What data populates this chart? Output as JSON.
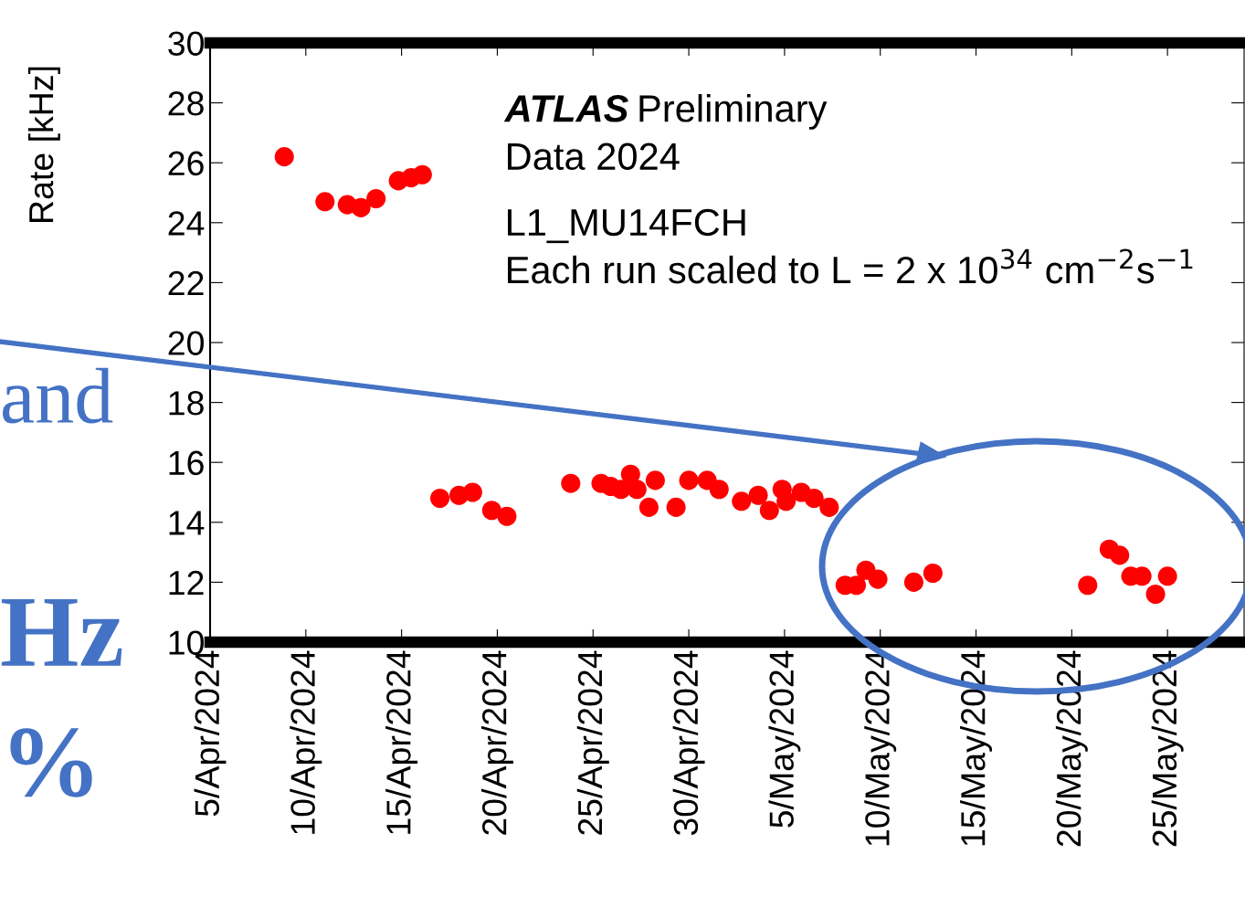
{
  "chart_data": {
    "type": "scatter",
    "ylabel": "Rate [kHz]",
    "marker": "circle",
    "annotations": [
      "ATLAS Preliminary",
      "Data 2024",
      "L1_MU14FCH",
      "Each run scaled to L = 2 x 10$^{34}$ cm$^{−2}$s$^{−1}$",
      "and",
      "Hz",
      "%"
    ],
    "xlim": [
      "2024-04-05",
      "2024-05-29"
    ],
    "xticks": [
      {
        "value": "2024-04-05",
        "label": "5/Apr/2024"
      },
      {
        "value": "2024-04-10",
        "label": "10/Apr/2024"
      },
      {
        "value": "2024-04-15",
        "label": "15/Apr/2024"
      },
      {
        "value": "2024-04-20",
        "label": "20/Apr/2024"
      },
      {
        "value": "2024-04-25",
        "label": "25/Apr/2024"
      },
      {
        "value": "2024-04-30",
        "label": "30/Apr/2024"
      },
      {
        "value": "2024-05-05",
        "label": "5/May/2024"
      },
      {
        "value": "2024-05-10",
        "label": "10/May/2024"
      },
      {
        "value": "2024-05-15",
        "label": "15/May/2024"
      },
      {
        "value": "2024-05-20",
        "label": "20/May/2024"
      },
      {
        "value": "2024-05-25",
        "label": "25/May/2024"
      }
    ],
    "ylim": [
      10,
      30
    ],
    "yticks": [
      10,
      12,
      14,
      16,
      18,
      20,
      22,
      24,
      26,
      28,
      30
    ],
    "series": [
      {
        "color": "#ff0000",
        "x": [
          "2024-04-08T21:00",
          "2024-04-11T00:00",
          "2024-04-12T04:00",
          "2024-04-12T21:00",
          "2024-04-13T16:00",
          "2024-04-14T20:00",
          "2024-04-15T12:00",
          "2024-04-16T02:00",
          "2024-04-17T00:00",
          "2024-04-18T00:00",
          "2024-04-18T17:00",
          "2024-04-19T17:00",
          "2024-04-20T12:00",
          "2024-04-23T20:00",
          "2024-04-25T10:00",
          "2024-04-25T22:00",
          "2024-04-26T11:00",
          "2024-04-26T23:00",
          "2024-04-27T07:00",
          "2024-04-27T22:00",
          "2024-04-28T06:00",
          "2024-04-29T08:00",
          "2024-04-30T00:00",
          "2024-04-30T23:00",
          "2024-05-01T14:00",
          "2024-05-02T18:00",
          "2024-05-03T15:00",
          "2024-05-04T05:00",
          "2024-05-04T21:00",
          "2024-05-05T02:00",
          "2024-05-05T21:00",
          "2024-05-06T13:00",
          "2024-05-07T08:00",
          "2024-05-08T04:00",
          "2024-05-08T18:00",
          "2024-05-09T06:00",
          "2024-05-09T21:00",
          "2024-05-11T18:00",
          "2024-05-12T18:00",
          "2024-05-20T20:00",
          "2024-05-21T23:00",
          "2024-05-22T12:00",
          "2024-05-23T02:00",
          "2024-05-23T16:00",
          "2024-05-24T09:00",
          "2024-05-25T00:00"
        ],
        "values": [
          26.2,
          24.7,
          24.6,
          24.5,
          24.8,
          25.4,
          25.5,
          25.6,
          14.8,
          14.9,
          15.0,
          14.4,
          14.2,
          15.3,
          15.3,
          15.2,
          15.1,
          15.6,
          15.1,
          14.5,
          15.4,
          14.5,
          15.4,
          15.4,
          15.1,
          14.7,
          14.9,
          14.4,
          15.1,
          14.7,
          15.0,
          14.8,
          14.5,
          11.9,
          11.9,
          12.4,
          12.1,
          12.0,
          12.3,
          11.9,
          13.1,
          12.9,
          12.2,
          12.2,
          11.6,
          12.2
        ]
      }
    ]
  }
}
